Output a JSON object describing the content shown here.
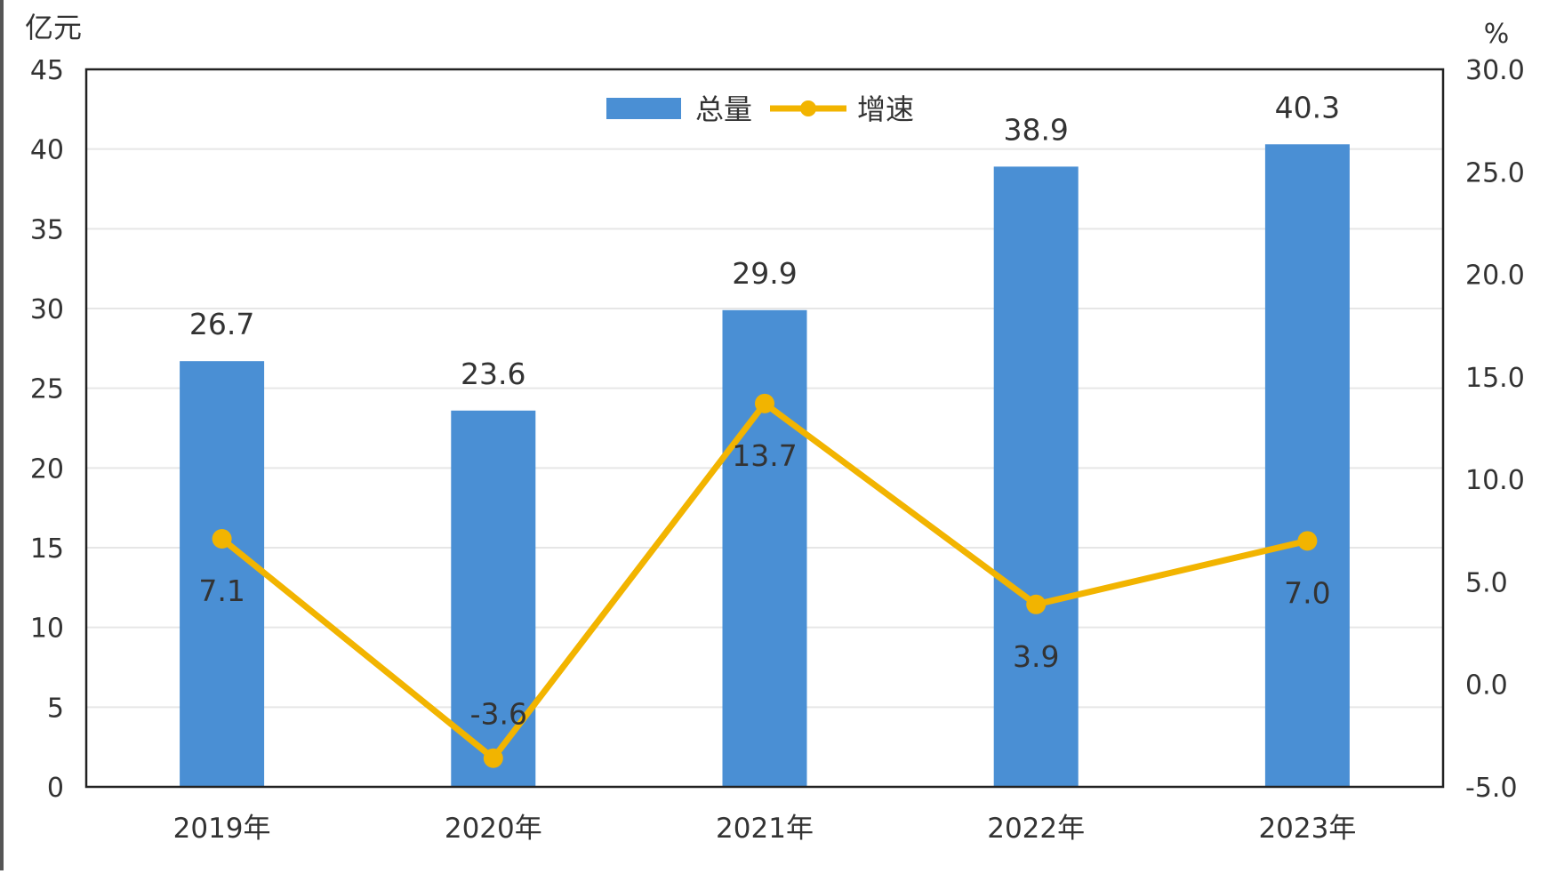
{
  "chart_data": {
    "type": "bar",
    "categories": [
      "2019年",
      "2020年",
      "2021年",
      "2022年",
      "2023年"
    ],
    "series": [
      {
        "name": "总量",
        "kind": "bar",
        "axis": "left",
        "values": [
          26.7,
          23.6,
          29.9,
          38.9,
          40.3
        ],
        "labels": [
          "26.7",
          "23.6",
          "29.9",
          "38.9",
          "40.3"
        ]
      },
      {
        "name": "增速",
        "kind": "line",
        "axis": "right",
        "values": [
          7.1,
          -3.6,
          13.7,
          3.9,
          7.0
        ],
        "labels": [
          "7.1",
          "-3.6",
          "13.7",
          "3.9",
          "7.0"
        ]
      }
    ],
    "ylabel": "亿元",
    "y2label": "%",
    "ylim": [
      0,
      45
    ],
    "y2lim": [
      -5,
      30
    ],
    "yticks": [
      "0",
      "5",
      "10",
      "15",
      "20",
      "25",
      "30",
      "35",
      "40",
      "45"
    ],
    "y2ticks": [
      "-5.0",
      "0.0",
      "5.0",
      "10.0",
      "15.0",
      "20.0",
      "25.0",
      "30.0"
    ],
    "legend_position": "top-center",
    "grid": true,
    "colors": {
      "bar": "#4a8fd4",
      "line": "#f2b400",
      "text": "#333333",
      "axis": "#222222",
      "grid": "#e6e6e6"
    }
  }
}
